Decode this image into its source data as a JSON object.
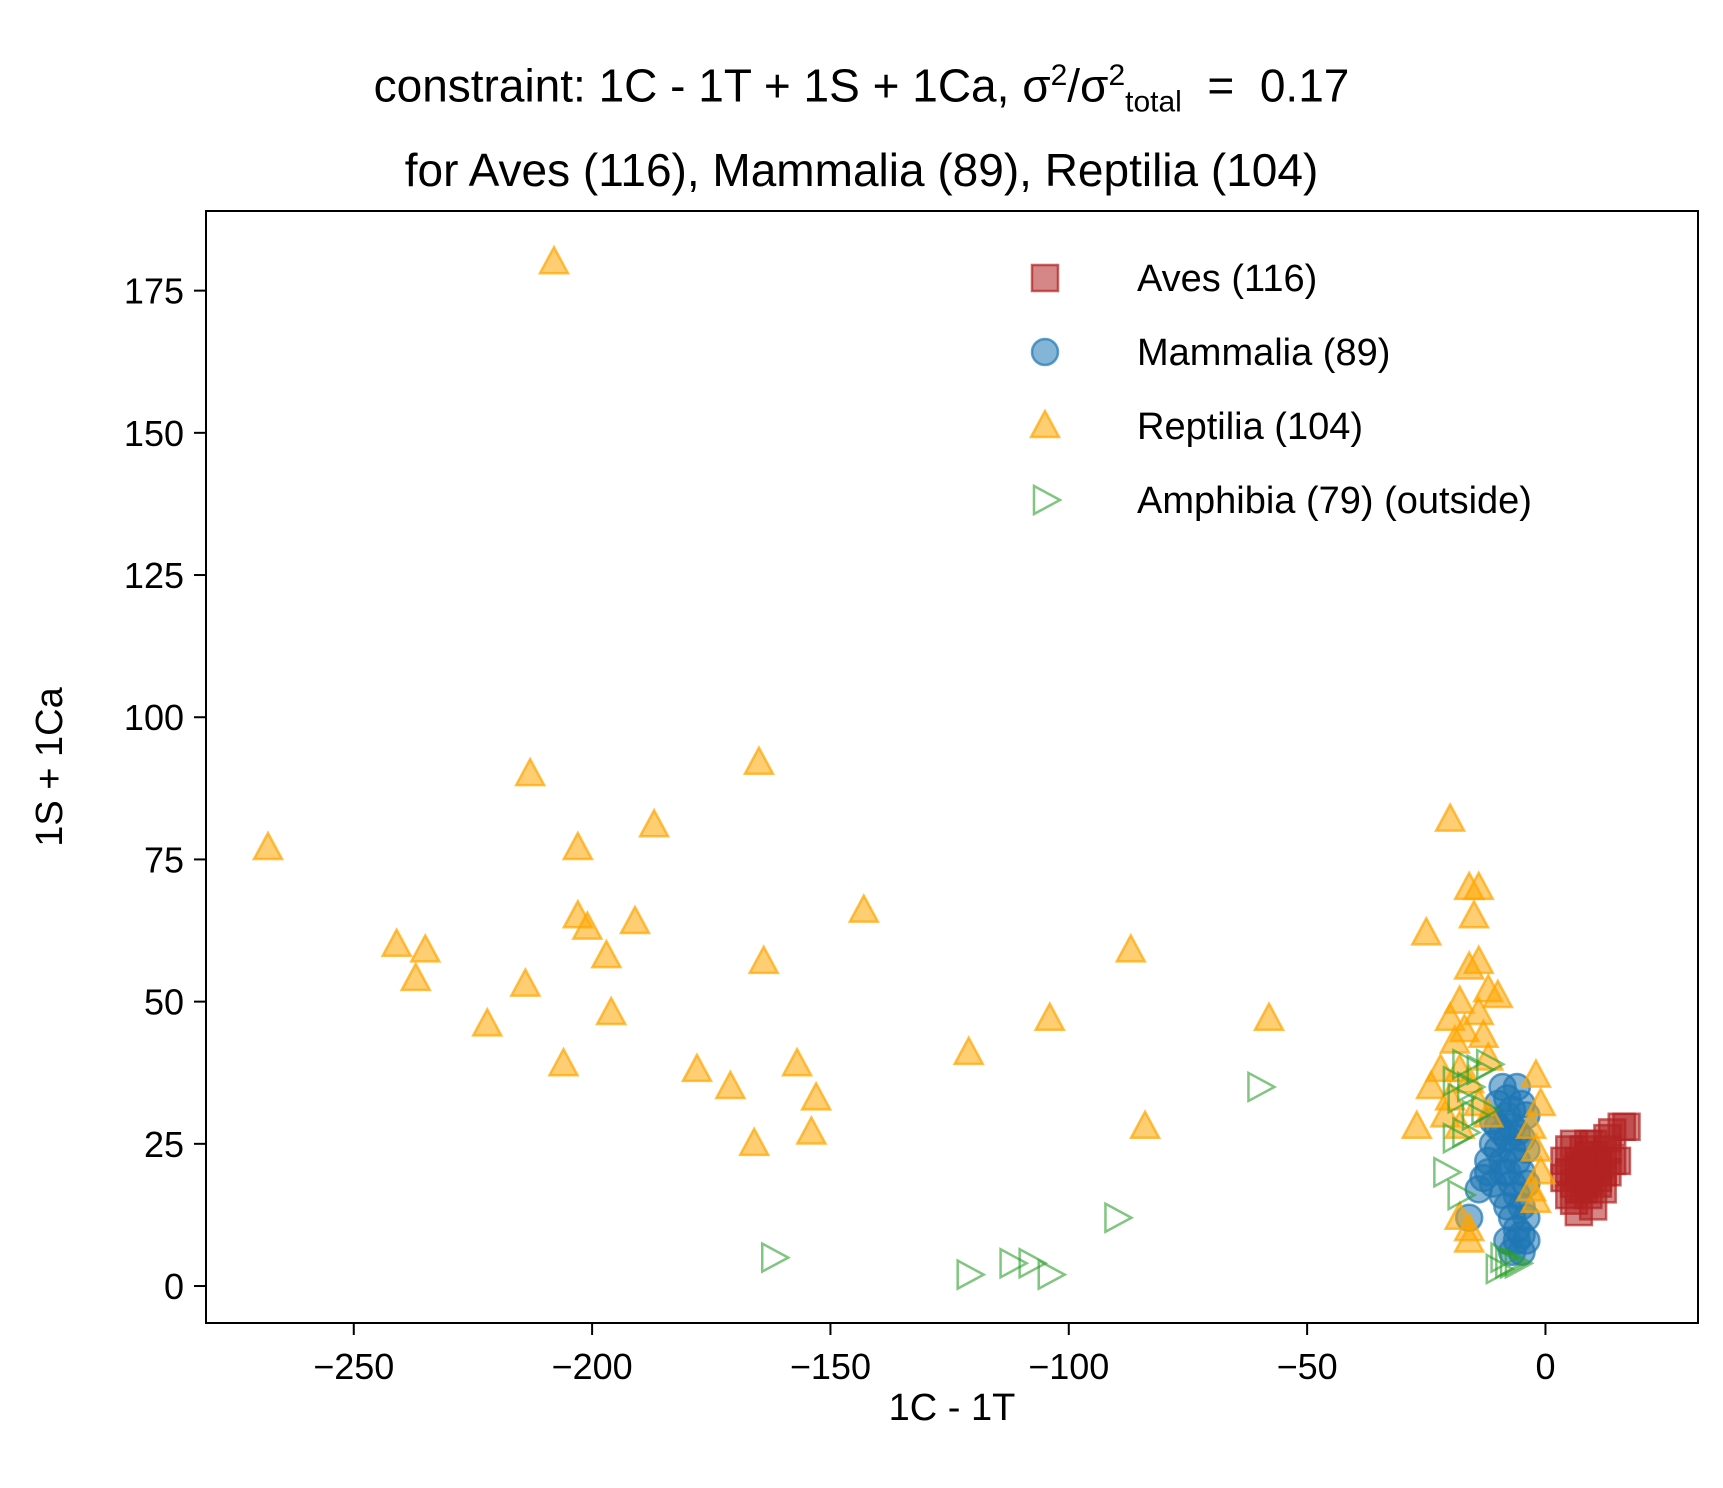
{
  "chart_data": {
    "type": "scatter",
    "title": {
      "line1_prefix": "constraint: 1C - 1T + 1S + 1Ca, σ",
      "line1_sup1": "2",
      "line1_mid": "/σ",
      "line1_sup2": "2",
      "line1_sub": "total",
      "line1_suffix": "  =  0.17",
      "line2": "for Aves (116), Mammalia (89), Reptilia (104)"
    },
    "xlabel": "1C - 1T",
    "ylabel": "1S + 1Ca",
    "xlim": [
      -281,
      32
    ],
    "ylim": [
      -6.5,
      189
    ],
    "xticks": [
      -250,
      -200,
      -150,
      -100,
      -50,
      0
    ],
    "xtick_labels": [
      "−250",
      "−200",
      "−150",
      "−100",
      "−50",
      "0"
    ],
    "yticks": [
      0,
      25,
      50,
      75,
      100,
      125,
      150,
      175
    ],
    "ytick_labels": [
      "0",
      "25",
      "50",
      "75",
      "100",
      "125",
      "150",
      "175"
    ],
    "grid": false,
    "legend_position": "top-right",
    "series": [
      {
        "name": "Aves (116)",
        "marker": "square",
        "color": "#b22222",
        "points": [
          [
            5,
            24
          ],
          [
            6,
            20
          ],
          [
            7,
            22
          ],
          [
            8,
            18
          ],
          [
            9,
            25
          ],
          [
            10,
            21
          ],
          [
            11,
            19
          ],
          [
            12,
            23
          ],
          [
            13,
            26
          ],
          [
            14,
            27
          ],
          [
            16,
            28
          ],
          [
            17,
            28
          ],
          [
            6,
            15
          ],
          [
            7,
            13
          ],
          [
            8,
            17
          ],
          [
            9,
            16
          ],
          [
            10,
            14
          ],
          [
            11,
            18
          ],
          [
            12,
            17
          ],
          [
            13,
            20
          ],
          [
            14,
            22
          ],
          [
            15,
            22
          ],
          [
            4,
            19
          ],
          [
            5,
            16
          ],
          [
            6,
            18
          ],
          [
            7,
            21
          ],
          [
            8,
            24
          ],
          [
            9,
            23
          ],
          [
            10,
            19
          ],
          [
            11,
            22
          ],
          [
            12,
            20
          ],
          [
            13,
            24
          ],
          [
            4,
            22
          ],
          [
            5,
            20
          ],
          [
            6,
            25
          ],
          [
            7,
            17
          ],
          [
            8,
            21
          ],
          [
            9,
            19
          ],
          [
            10,
            25
          ],
          [
            11,
            21
          ]
        ]
      },
      {
        "name": "Mammalia (89)",
        "marker": "circle",
        "color": "#1f77b4",
        "points": [
          [
            -16,
            12
          ],
          [
            -14,
            17
          ],
          [
            -13,
            19
          ],
          [
            -12,
            22
          ],
          [
            -11,
            25
          ],
          [
            -11,
            29
          ],
          [
            -10,
            32
          ],
          [
            -9,
            35
          ],
          [
            -8,
            33
          ],
          [
            -7,
            31
          ],
          [
            -6,
            35
          ],
          [
            -5,
            32
          ],
          [
            -4,
            30
          ],
          [
            -8,
            26
          ],
          [
            -7,
            24
          ],
          [
            -6,
            22
          ],
          [
            -5,
            20
          ],
          [
            -4,
            18
          ],
          [
            -9,
            16
          ],
          [
            -8,
            14
          ],
          [
            -7,
            12
          ],
          [
            -6,
            10
          ],
          [
            -5,
            9
          ],
          [
            -4,
            8
          ],
          [
            -10,
            28
          ],
          [
            -9,
            27
          ],
          [
            -8,
            30
          ],
          [
            -7,
            28
          ],
          [
            -6,
            27
          ],
          [
            -5,
            26
          ],
          [
            -4,
            24
          ],
          [
            -9,
            22
          ],
          [
            -8,
            20
          ],
          [
            -7,
            18
          ],
          [
            -6,
            16
          ],
          [
            -5,
            14
          ],
          [
            -4,
            12
          ],
          [
            -12,
            20
          ],
          [
            -11,
            18
          ],
          [
            -6,
            8
          ],
          [
            -5,
            6
          ],
          [
            -7,
            6
          ],
          [
            -8,
            8
          ],
          [
            -10,
            24
          ],
          [
            -9,
            20
          ]
        ]
      },
      {
        "name": "Reptilia (104)",
        "marker": "triangle-up",
        "color": "#ffa500",
        "points": [
          [
            -208,
            180
          ],
          [
            -268,
            77
          ],
          [
            -213,
            90
          ],
          [
            -165,
            92
          ],
          [
            -187,
            81
          ],
          [
            -203,
            77
          ],
          [
            -143,
            66
          ],
          [
            -203,
            65
          ],
          [
            -201,
            63
          ],
          [
            -191,
            64
          ],
          [
            -241,
            60
          ],
          [
            -235,
            59
          ],
          [
            -237,
            54
          ],
          [
            -214,
            53
          ],
          [
            -197,
            58
          ],
          [
            -164,
            57
          ],
          [
            -87,
            59
          ],
          [
            -222,
            46
          ],
          [
            -196,
            48
          ],
          [
            -104,
            47
          ],
          [
            -58,
            47
          ],
          [
            -206,
            39
          ],
          [
            -178,
            38
          ],
          [
            -157,
            39
          ],
          [
            -121,
            41
          ],
          [
            -171,
            35
          ],
          [
            -153,
            33
          ],
          [
            -166,
            25
          ],
          [
            -154,
            27
          ],
          [
            -84,
            28
          ],
          [
            -20,
            82
          ],
          [
            -16,
            70
          ],
          [
            -14,
            70
          ],
          [
            -15,
            65
          ],
          [
            -25,
            62
          ],
          [
            -16,
            56
          ],
          [
            -14,
            57
          ],
          [
            -12,
            52
          ],
          [
            -10,
            51
          ],
          [
            -18,
            50
          ],
          [
            -20,
            47
          ],
          [
            -17,
            45
          ],
          [
            -19,
            43
          ],
          [
            -14,
            48
          ],
          [
            -13,
            44
          ],
          [
            -12,
            40
          ],
          [
            -22,
            38
          ],
          [
            -18,
            38
          ],
          [
            -16,
            36
          ],
          [
            -24,
            35
          ],
          [
            -20,
            33
          ],
          [
            -14,
            32
          ],
          [
            -21,
            30
          ],
          [
            -27,
            28
          ],
          [
            -18,
            28
          ],
          [
            -12,
            30
          ],
          [
            -2,
            37
          ],
          [
            -1,
            32
          ],
          [
            -3,
            28
          ],
          [
            -2,
            24
          ],
          [
            -1,
            20
          ],
          [
            -3,
            17
          ],
          [
            -2,
            15
          ],
          [
            -18,
            12
          ],
          [
            -16,
            10
          ],
          [
            -16,
            8
          ]
        ]
      },
      {
        "name": "Amphibia (79) (outside)",
        "marker": "triangle-right-open",
        "color": "#2ca02c",
        "points": [
          [
            -60,
            35
          ],
          [
            -90,
            12
          ],
          [
            -162,
            5
          ],
          [
            -121,
            2
          ],
          [
            -112,
            4
          ],
          [
            -108,
            4
          ],
          [
            -104,
            2
          ],
          [
            -17,
            39
          ],
          [
            -14,
            38
          ],
          [
            -12,
            39
          ],
          [
            -16,
            35
          ],
          [
            -19,
            36
          ],
          [
            -18,
            33
          ],
          [
            -15,
            30
          ],
          [
            -13,
            31
          ],
          [
            -17,
            27
          ],
          [
            -19,
            26
          ],
          [
            -21,
            20
          ],
          [
            -18,
            16
          ],
          [
            -9,
            5
          ],
          [
            -8,
            4
          ],
          [
            -7,
            4
          ],
          [
            -6,
            4
          ],
          [
            -10,
            3
          ]
        ]
      }
    ]
  }
}
